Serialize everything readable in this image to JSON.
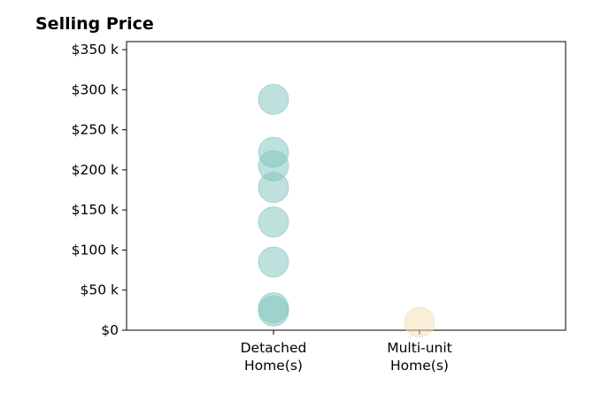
{
  "chart_data": {
    "type": "scatter",
    "title": "Selling Price",
    "xlabel": "",
    "ylabel": "",
    "ylim": [
      0,
      360
    ],
    "yticks": [
      0,
      50,
      100,
      150,
      200,
      250,
      300,
      350
    ],
    "ytick_labels": [
      "$0",
      "$50 k",
      "$100 k",
      "$150 k",
      "$200 k",
      "$250 k",
      "$300 k",
      "$350 k"
    ],
    "categories": [
      {
        "line1": "Detached",
        "line2": "Home(s)"
      },
      {
        "line1": "Multi-unit",
        "line2": "Home(s)"
      }
    ],
    "grid": false,
    "series": [
      {
        "category_index": 0,
        "color": "#7ec4bc",
        "values": [
          288,
          222,
          205,
          178,
          135,
          85,
          28,
          24
        ]
      },
      {
        "category_index": 1,
        "color": "#f5deb0",
        "values": [
          10
        ]
      }
    ]
  }
}
